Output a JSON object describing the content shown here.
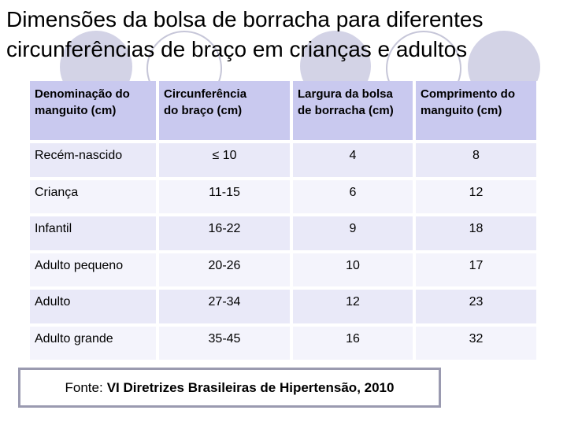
{
  "title": "Dimensões da bolsa de borracha para diferentes\ncircunferências de braço em crianças e adultos",
  "table": {
    "headers": [
      "Denominação do\nmanguito (cm)",
      "Circunferência\ndo braço (cm)",
      "Largura da bolsa\nde borracha (cm)",
      "Comprimento do\nmanguito (cm)"
    ],
    "rows": [
      [
        "Recém-nascido",
        "≤ 10",
        "4",
        "8"
      ],
      [
        "Criança",
        "11-15",
        "6",
        "12"
      ],
      [
        "Infantil",
        "16-22",
        "9",
        "18"
      ],
      [
        "Adulto pequeno",
        "20-26",
        "10",
        "17"
      ],
      [
        "Adulto",
        "27-34",
        "12",
        "23"
      ],
      [
        "Adulto grande",
        "35-45",
        "16",
        "32"
      ]
    ]
  },
  "footer": {
    "prefix": "Fonte:",
    "citation": "VI Diretrizes Brasileiras de Hipertensão, 2010"
  },
  "colors": {
    "header_bg": "#c9c9ef",
    "row_odd_bg": "#e9e9f8",
    "row_even_bg": "#f4f4fc",
    "circle_fill": "#d3d3e6",
    "circle_outline": "#c6c6d8",
    "source_box_border": "#9a9ab0",
    "text": "#000000"
  }
}
